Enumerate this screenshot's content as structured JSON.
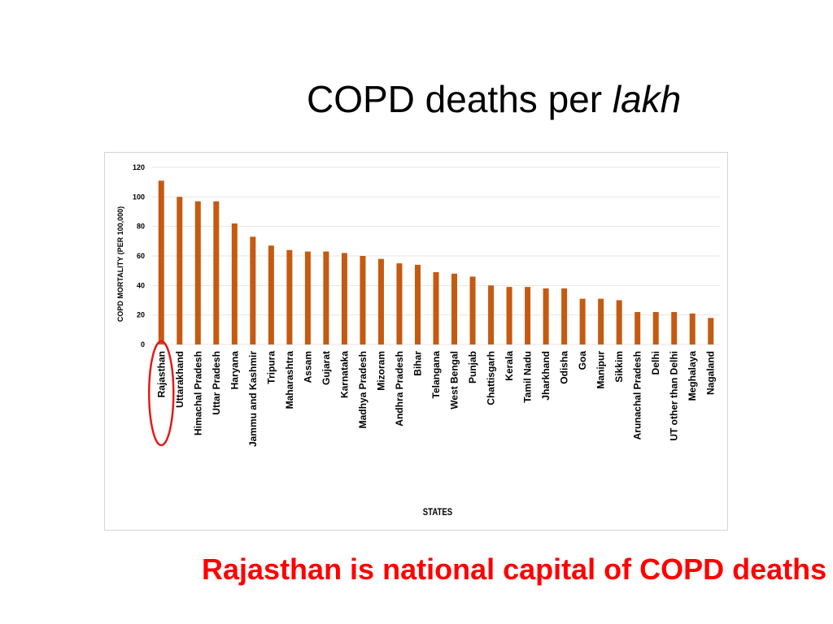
{
  "slide": {
    "title_main": "COPD deaths per ",
    "title_emphasis": "lakh",
    "caption": "Rajasthan is national capital of COPD deaths"
  },
  "colors": {
    "bar": "#c55a11",
    "highlight_ring": "#e81818",
    "caption": "#ff0000"
  },
  "chart_data": {
    "type": "bar",
    "title": "",
    "xlabel": "STATES",
    "ylabel": "COPD MORTALITY (PER 100,000)",
    "ylim": [
      0,
      120
    ],
    "yticks": [
      0,
      20,
      40,
      60,
      80,
      100,
      120
    ],
    "grid": true,
    "highlighted_category": "Rajasthan",
    "categories": [
      "Rajasthan",
      "Uttarakhand",
      "Himachal Pradesh",
      "Uttar Pradesh",
      "Haryana",
      "Jammu and Kashmir",
      "Tripura",
      "Maharashtra",
      "Assam",
      "Gujarat",
      "Karnataka",
      "Madhya Pradesh",
      "Mizoram",
      "Andhra Pradesh",
      "Bihar",
      "Telangana",
      "West Bengal",
      "Punjab",
      "Chattisgarh",
      "Kerala",
      "Tamil Nadu",
      "Jharkhand",
      "Odisha",
      "Goa",
      "Manipur",
      "Sikkim",
      "Arunachal Pradesh",
      "Delhi",
      "UT other than Delhi",
      "Meghalaya",
      "Nagaland"
    ],
    "values": [
      111,
      100,
      97,
      97,
      82,
      73,
      67,
      64,
      63,
      63,
      62,
      60,
      58,
      55,
      54,
      49,
      48,
      46,
      40,
      39,
      39,
      38,
      38,
      31,
      31,
      30,
      22,
      22,
      22,
      21,
      18
    ]
  }
}
